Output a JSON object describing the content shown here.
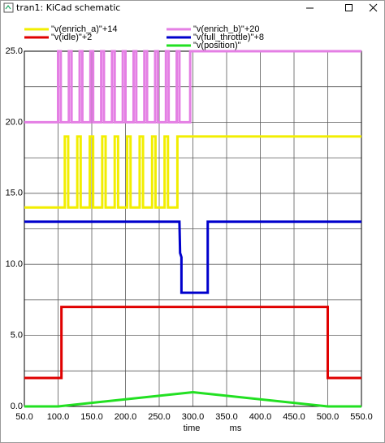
{
  "window": {
    "title": "tran1: KiCad schematic"
  },
  "chart_data": {
    "type": "line",
    "x_label": "time",
    "x_unit": "ms",
    "xlim": [
      50,
      550
    ],
    "xticks": [
      {
        "value": 50,
        "label": "50.0"
      },
      {
        "value": 100,
        "label": "100.0"
      },
      {
        "value": 150,
        "label": "150.0"
      },
      {
        "value": 200,
        "label": "200.0"
      },
      {
        "value": 250,
        "label": "250.0"
      },
      {
        "value": 300,
        "label": "300.0"
      },
      {
        "value": 350,
        "label": "350.0"
      },
      {
        "value": 400,
        "label": "400.0"
      },
      {
        "value": 450,
        "label": "450.0"
      },
      {
        "value": 500,
        "label": "500.0"
      },
      {
        "value": 550,
        "label": "550.0"
      }
    ],
    "ylim": [
      0,
      25
    ],
    "yticks": [
      {
        "value": 0,
        "label": "0.0"
      },
      {
        "value": 5,
        "label": "5.0"
      },
      {
        "value": 10,
        "label": "10.0"
      },
      {
        "value": 15,
        "label": "15.0"
      },
      {
        "value": 20,
        "label": "20.0"
      },
      {
        "value": 25,
        "label": "25.0"
      }
    ],
    "yminor": [
      2.5,
      7.5,
      12.5,
      17.5,
      22.5
    ],
    "grid": true,
    "series": [
      {
        "name": "\"v(enrich_a)\"+14",
        "color": "#f2ee00",
        "x": [
          50,
          110,
          110,
          115,
          115,
          128.5,
          128.5,
          133.5,
          133.5,
          147,
          147,
          152,
          152,
          165.5,
          165.5,
          170.5,
          170.5,
          184,
          184,
          189,
          189,
          202.5,
          202.5,
          207.5,
          207.5,
          221,
          221,
          226,
          226,
          239.5,
          239.5,
          244.5,
          244.5,
          258,
          258,
          263,
          263,
          277,
          277,
          550
        ],
        "values": [
          14,
          14,
          19,
          19,
          14,
          14,
          19,
          19,
          14,
          14,
          19,
          19,
          14,
          14,
          19,
          19,
          14,
          14,
          19,
          19,
          14,
          14,
          19,
          19,
          14,
          14,
          19,
          19,
          14,
          14,
          19,
          19,
          14,
          14,
          19,
          19,
          14,
          14,
          19,
          19
        ]
      },
      {
        "name": "\"v(enrich_b)\"+20",
        "color": "#e47fe4",
        "x": [
          50,
          100,
          100,
          104,
          104,
          116,
          116,
          120,
          120,
          132,
          132,
          136,
          136,
          148,
          148,
          152,
          152,
          164,
          164,
          168,
          168,
          180,
          180,
          184,
          184,
          196,
          196,
          200,
          200,
          212,
          212,
          216,
          216,
          228,
          228,
          232,
          232,
          244,
          244,
          248,
          248,
          260,
          260,
          264,
          264,
          276,
          276,
          280,
          280,
          296,
          296,
          550
        ],
        "values": [
          20,
          20,
          25,
          25,
          20,
          20,
          25,
          25,
          20,
          20,
          25,
          25,
          20,
          20,
          25,
          25,
          20,
          20,
          25,
          25,
          20,
          20,
          25,
          25,
          20,
          20,
          25,
          25,
          20,
          20,
          25,
          25,
          20,
          20,
          25,
          25,
          20,
          20,
          25,
          25,
          20,
          20,
          25,
          25,
          20,
          20,
          25,
          25,
          20,
          20,
          25,
          25
        ]
      },
      {
        "name": "\"v(idle)\"+2",
        "color": "#e00000",
        "x": [
          50,
          105,
          105,
          500,
          500,
          550
        ],
        "values": [
          2,
          2,
          7,
          7,
          2,
          2
        ]
      },
      {
        "name": "\"v(full_throttle)\"+8",
        "color": "#0000cc",
        "x": [
          50,
          280,
          281,
          283,
          283,
          322,
          322,
          550
        ],
        "values": [
          13,
          13,
          10.8,
          10.5,
          8,
          8,
          13,
          13
        ]
      },
      {
        "name": "\"v(position)\"",
        "color": "#22e022",
        "x": [
          50,
          100,
          300,
          500,
          550
        ],
        "values": [
          0,
          0,
          1,
          0,
          0
        ]
      }
    ]
  }
}
